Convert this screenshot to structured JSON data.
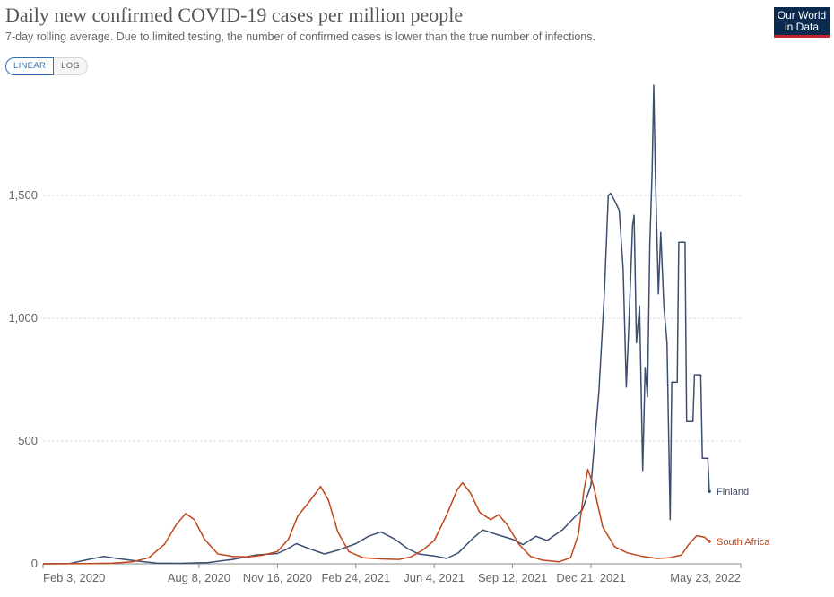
{
  "header": {
    "title": "Daily new confirmed COVID-19 cases per million people",
    "subtitle": "7-day rolling average. Due to limited testing, the number of confirmed cases is lower than the true number of infections.",
    "logo_line1": "Our World",
    "logo_line2": "in Data"
  },
  "scale_toggle": {
    "linear_label": "LINEAR",
    "log_label": "LOG",
    "selected": "LINEAR"
  },
  "colors": {
    "Finland": "#3c4e6f",
    "South Africa": "#c0461a",
    "grid": "#dddddd",
    "baseline": "#8a8a8a",
    "accent": "#2f6eba"
  },
  "chart_data": {
    "type": "line",
    "title": "Daily new confirmed COVID-19 cases per million people",
    "subtitle": "7-day rolling average. Due to limited testing, the number of confirmed cases is lower than the true number of infections.",
    "x_ticks": [
      "Feb 3, 2020",
      "Aug 8, 2020",
      "Nov 16, 2020",
      "Feb 24, 2021",
      "Jun 4, 2021",
      "Sep 12, 2021",
      "Dec 21, 2021",
      "May 23, 2022"
    ],
    "y_ticks": [
      0,
      500,
      1000,
      1500
    ],
    "y_tick_labels": [
      "0",
      "500",
      "1,000",
      "1,500"
    ],
    "xlim": [
      "2020-01-22",
      "2022-06-30"
    ],
    "ylim": [
      0,
      1950
    ],
    "grid": "horizontal dashed",
    "legend": "inline labels at line ends",
    "series": [
      {
        "name": "Finland",
        "color": "#3c4e6f",
        "points": [
          [
            "2020-01-22",
            0
          ],
          [
            "2020-02-25",
            1
          ],
          [
            "2020-03-20",
            18
          ],
          [
            "2020-04-08",
            30
          ],
          [
            "2020-04-25",
            22
          ],
          [
            "2020-05-20",
            12
          ],
          [
            "2020-06-15",
            3
          ],
          [
            "2020-07-15",
            2
          ],
          [
            "2020-08-20",
            5
          ],
          [
            "2020-09-20",
            18
          ],
          [
            "2020-10-20",
            36
          ],
          [
            "2020-11-16",
            42
          ],
          [
            "2020-11-28",
            60
          ],
          [
            "2020-12-10",
            82
          ],
          [
            "2020-12-28",
            60
          ],
          [
            "2021-01-15",
            40
          ],
          [
            "2021-02-01",
            55
          ],
          [
            "2021-02-24",
            82
          ],
          [
            "2021-03-12",
            112
          ],
          [
            "2021-03-28",
            130
          ],
          [
            "2021-04-15",
            100
          ],
          [
            "2021-05-01",
            62
          ],
          [
            "2021-05-15",
            40
          ],
          [
            "2021-06-04",
            32
          ],
          [
            "2021-06-20",
            22
          ],
          [
            "2021-07-05",
            45
          ],
          [
            "2021-07-22",
            100
          ],
          [
            "2021-08-05",
            138
          ],
          [
            "2021-08-22",
            120
          ],
          [
            "2021-09-12",
            100
          ],
          [
            "2021-09-25",
            78
          ],
          [
            "2021-10-12",
            112
          ],
          [
            "2021-10-26",
            95
          ],
          [
            "2021-11-15",
            140
          ],
          [
            "2021-11-30",
            190
          ],
          [
            "2021-12-10",
            220
          ],
          [
            "2021-12-21",
            320
          ],
          [
            "2021-12-31",
            700
          ],
          [
            "2022-01-07",
            1100
          ],
          [
            "2022-01-12",
            1500
          ],
          [
            "2022-01-15",
            1510
          ],
          [
            "2022-01-20",
            1480
          ],
          [
            "2022-01-26",
            1440
          ],
          [
            "2022-01-31",
            1200
          ],
          [
            "2022-02-04",
            720
          ],
          [
            "2022-02-07",
            950
          ],
          [
            "2022-02-12",
            1380
          ],
          [
            "2022-02-14",
            1420
          ],
          [
            "2022-02-17",
            900
          ],
          [
            "2022-02-21",
            1050
          ],
          [
            "2022-02-25",
            380
          ],
          [
            "2022-02-28",
            800
          ],
          [
            "2022-03-03",
            680
          ],
          [
            "2022-03-06",
            1300
          ],
          [
            "2022-03-09",
            1600
          ],
          [
            "2022-03-11",
            1950
          ],
          [
            "2022-03-13",
            1600
          ],
          [
            "2022-03-17",
            1100
          ],
          [
            "2022-03-20",
            1350
          ],
          [
            "2022-03-24",
            1050
          ],
          [
            "2022-03-28",
            900
          ],
          [
            "2022-04-01",
            180
          ],
          [
            "2022-04-03",
            740
          ],
          [
            "2022-04-10",
            740
          ],
          [
            "2022-04-12",
            1310
          ],
          [
            "2022-04-20",
            1310
          ],
          [
            "2022-04-22",
            580
          ],
          [
            "2022-04-30",
            580
          ],
          [
            "2022-05-02",
            770
          ],
          [
            "2022-05-10",
            770
          ],
          [
            "2022-05-12",
            430
          ],
          [
            "2022-05-19",
            430
          ],
          [
            "2022-05-21",
            295
          ]
        ]
      },
      {
        "name": "South Africa",
        "color": "#c0461a",
        "points": [
          [
            "2020-01-22",
            0
          ],
          [
            "2020-03-20",
            1
          ],
          [
            "2020-04-20",
            3
          ],
          [
            "2020-05-15",
            8
          ],
          [
            "2020-06-05",
            25
          ],
          [
            "2020-06-25",
            80
          ],
          [
            "2020-07-10",
            160
          ],
          [
            "2020-07-22",
            205
          ],
          [
            "2020-08-02",
            180
          ],
          [
            "2020-08-15",
            100
          ],
          [
            "2020-09-01",
            40
          ],
          [
            "2020-09-20",
            30
          ],
          [
            "2020-10-10",
            28
          ],
          [
            "2020-10-28",
            35
          ],
          [
            "2020-11-16",
            50
          ],
          [
            "2020-11-30",
            100
          ],
          [
            "2020-12-12",
            195
          ],
          [
            "2020-12-26",
            250
          ],
          [
            "2021-01-10",
            315
          ],
          [
            "2021-01-20",
            260
          ],
          [
            "2021-02-01",
            130
          ],
          [
            "2021-02-15",
            50
          ],
          [
            "2021-03-05",
            25
          ],
          [
            "2021-03-28",
            20
          ],
          [
            "2021-04-20",
            18
          ],
          [
            "2021-05-05",
            28
          ],
          [
            "2021-05-20",
            55
          ],
          [
            "2021-06-04",
            95
          ],
          [
            "2021-06-20",
            200
          ],
          [
            "2021-07-03",
            300
          ],
          [
            "2021-07-10",
            330
          ],
          [
            "2021-07-20",
            290
          ],
          [
            "2021-08-01",
            210
          ],
          [
            "2021-08-15",
            180
          ],
          [
            "2021-08-25",
            200
          ],
          [
            "2021-09-05",
            160
          ],
          [
            "2021-09-20",
            80
          ],
          [
            "2021-10-05",
            30
          ],
          [
            "2021-10-20",
            15
          ],
          [
            "2021-11-10",
            8
          ],
          [
            "2021-11-25",
            25
          ],
          [
            "2021-12-05",
            120
          ],
          [
            "2021-12-12",
            300
          ],
          [
            "2021-12-17",
            385
          ],
          [
            "2021-12-24",
            320
          ],
          [
            "2022-01-05",
            150
          ],
          [
            "2022-01-20",
            70
          ],
          [
            "2022-02-05",
            45
          ],
          [
            "2022-02-25",
            30
          ],
          [
            "2022-03-15",
            22
          ],
          [
            "2022-03-31",
            25
          ],
          [
            "2022-04-15",
            35
          ],
          [
            "2022-04-25",
            80
          ],
          [
            "2022-05-05",
            115
          ],
          [
            "2022-05-15",
            108
          ],
          [
            "2022-05-21",
            92
          ]
        ]
      }
    ]
  }
}
